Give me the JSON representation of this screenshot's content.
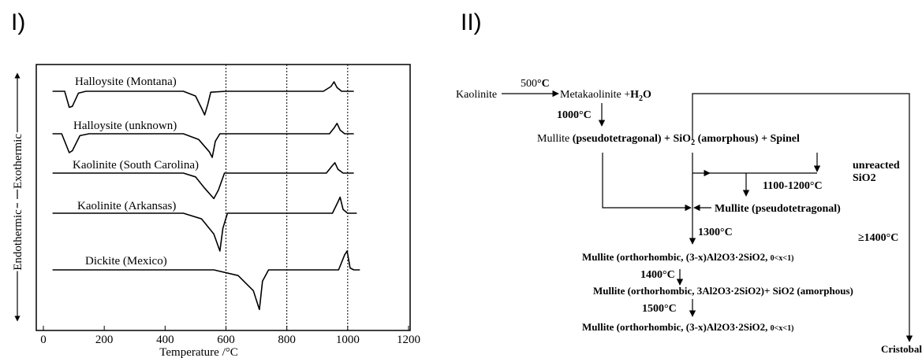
{
  "panel_labels": [
    "I)",
    "II)"
  ],
  "chart_data": {
    "type": "line",
    "xlabel": "Temperature /°C",
    "ylabel_top": "Exothermic",
    "ylabel_bottom": "Endothermic",
    "xlim": [
      0,
      1200
    ],
    "xticks": [
      0,
      200,
      400,
      600,
      800,
      1000,
      1200
    ],
    "vertical_gridlines": [
      600,
      800,
      1000
    ],
    "series": [
      {
        "name": "Halloysite (Montana)",
        "points": [
          [
            30,
            0
          ],
          [
            70,
            0
          ],
          [
            85,
            -0.85
          ],
          [
            95,
            -0.8
          ],
          [
            115,
            -0.1
          ],
          [
            140,
            0
          ],
          [
            460,
            0
          ],
          [
            500,
            -0.25
          ],
          [
            520,
            -0.9
          ],
          [
            530,
            -1.25
          ],
          [
            540,
            -0.7
          ],
          [
            550,
            -0.05
          ],
          [
            600,
            0
          ],
          [
            920,
            0
          ],
          [
            945,
            0.25
          ],
          [
            955,
            0.5
          ],
          [
            965,
            0.2
          ],
          [
            980,
            0
          ],
          [
            1020,
            0
          ]
        ]
      },
      {
        "name": "Halloysite (unknown)",
        "points": [
          [
            30,
            0
          ],
          [
            60,
            0
          ],
          [
            85,
            -1.0
          ],
          [
            95,
            -0.9
          ],
          [
            120,
            -0.1
          ],
          [
            150,
            0
          ],
          [
            460,
            0
          ],
          [
            510,
            -0.3
          ],
          [
            545,
            -0.95
          ],
          [
            555,
            -1.25
          ],
          [
            565,
            -0.4
          ],
          [
            580,
            0
          ],
          [
            940,
            0
          ],
          [
            955,
            0.3
          ],
          [
            965,
            0.55
          ],
          [
            975,
            0.2
          ],
          [
            990,
            0
          ],
          [
            1020,
            0
          ]
        ]
      },
      {
        "name": "Kaolinite (South Carolina)",
        "points": [
          [
            30,
            0
          ],
          [
            460,
            0
          ],
          [
            500,
            -0.2
          ],
          [
            530,
            -0.8
          ],
          [
            560,
            -1.35
          ],
          [
            575,
            -0.9
          ],
          [
            595,
            0
          ],
          [
            930,
            0
          ],
          [
            950,
            0.4
          ],
          [
            958,
            0.55
          ],
          [
            968,
            0.2
          ],
          [
            985,
            0
          ],
          [
            1020,
            0
          ]
        ]
      },
      {
        "name": "Kaolinite (Arkansas)",
        "points": [
          [
            30,
            0
          ],
          [
            460,
            0
          ],
          [
            520,
            -0.3
          ],
          [
            560,
            -1.1
          ],
          [
            580,
            -2.0
          ],
          [
            590,
            -0.8
          ],
          [
            605,
            0
          ],
          [
            950,
            0
          ],
          [
            968,
            0.6
          ],
          [
            975,
            0.85
          ],
          [
            985,
            0.2
          ],
          [
            1000,
            0
          ],
          [
            1030,
            0
          ]
        ]
      },
      {
        "name": "Dickite (Mexico)",
        "points": [
          [
            30,
            0
          ],
          [
            560,
            0
          ],
          [
            640,
            -0.3
          ],
          [
            690,
            -1.1
          ],
          [
            710,
            -2.1
          ],
          [
            720,
            -0.6
          ],
          [
            740,
            0
          ],
          [
            970,
            0
          ],
          [
            990,
            0.8
          ],
          [
            998,
            1.0
          ],
          [
            1008,
            0.1
          ],
          [
            1020,
            0
          ],
          [
            1040,
            0
          ]
        ]
      }
    ]
  },
  "diagram": {
    "kaolinite": "Kaolinite",
    "step1_temp": "500",
    "step1_unit": "°C",
    "metakaolinite_prefix": "Metakaolinite +",
    "h2o_main": "H",
    "h2o_sub": "2",
    "h2o_end": "O",
    "temp_1000": "1000°C",
    "mullite_prefix": "Mullite ",
    "pseudotetragonal_plus": "(pseudotetragonal) + SiO",
    "sio2_sub": "2",
    "amorphous_spinel": " (amorphous) + Spinel",
    "unreacted": "unreacted",
    "unreacted_sio2": "SiO2",
    "temp_1100_1200": "1100-1200°C",
    "mullite_pseudo": "Mullite (pseudotetragonal)",
    "temp_1300": "1300°C",
    "temp_ge1400": "≥1400°C",
    "ortho1_main": "Mullite (orthorhombic, (3-x)Al2O3·2SiO2, ",
    "ortho1_small": "0<x<1)",
    "temp_1400": "1400°C",
    "ortho2": "Mullite (orthorhombic, 3Al2O3·2SiO2)+ SiO2 (amorphous)",
    "temp_1500": "1500°C",
    "ortho3_main": "Mullite (orthorhombic, (3-x)Al2O3·2SiO2, ",
    "ortho3_small": "0<x<1)",
    "cristobalite": "Cristobalite"
  }
}
